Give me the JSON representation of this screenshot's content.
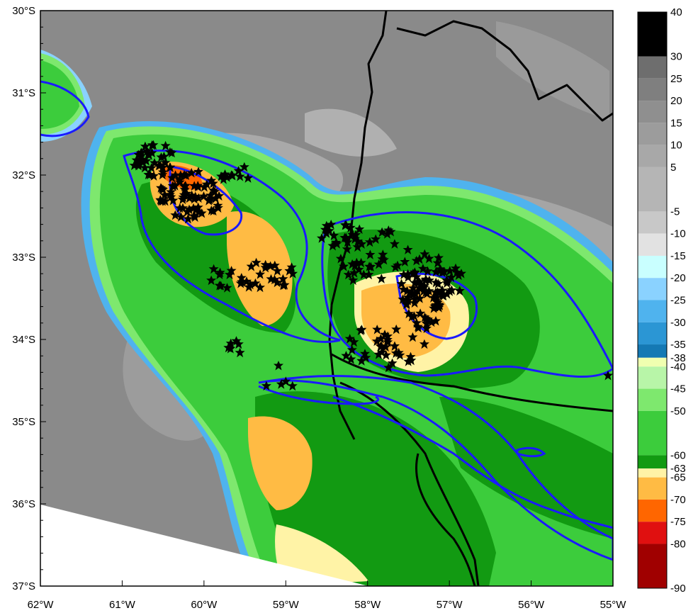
{
  "map": {
    "lat_labels": [
      "30°S",
      "31°S",
      "32°S",
      "33°S",
      "34°S",
      "35°S",
      "36°S",
      "37°S"
    ],
    "lon_labels": [
      "62°W",
      "61°W",
      "60°W",
      "59°W",
      "58°W",
      "57°W",
      "56°W",
      "55°W"
    ],
    "extent": {
      "lon_min": -62,
      "lon_max": -55,
      "lat_min": -37,
      "lat_max": -30
    },
    "layers": [
      "infrared brightness temperature shading",
      "blue contour lines",
      "black national borders",
      "black star lightning markers"
    ],
    "colors": {
      "background_gray": "#8a8a8a",
      "contour": "#1a1aff",
      "border": "#000000",
      "lightning_marker": "#000000",
      "no_data": "#ffffff"
    }
  },
  "colorbar": {
    "labels": [
      "40",
      "30",
      "25",
      "20",
      "15",
      "10",
      "5",
      "-5",
      "-10",
      "-15",
      "-20",
      "-25",
      "-30",
      "-35",
      "-38",
      "-40",
      "-45",
      "-50",
      "-60",
      "-63",
      "-65",
      "-70",
      "-75",
      "-80",
      "-90"
    ],
    "bands": [
      {
        "from": 30,
        "to": 40,
        "color": "#000000"
      },
      {
        "from": 25,
        "to": 30,
        "color": "#6e6e6e"
      },
      {
        "from": 20,
        "to": 25,
        "color": "#7f7f7f"
      },
      {
        "from": 15,
        "to": 20,
        "color": "#8f8f8f"
      },
      {
        "from": 10,
        "to": 15,
        "color": "#9c9c9c"
      },
      {
        "from": 5,
        "to": 10,
        "color": "#a8a8a8"
      },
      {
        "from": -5,
        "to": 5,
        "color": "#b5b5b5"
      },
      {
        "from": -10,
        "to": -5,
        "color": "#c8c8c8"
      },
      {
        "from": -15,
        "to": -10,
        "color": "#e2e2e2"
      },
      {
        "from": -20,
        "to": -15,
        "color": "#c9ffff"
      },
      {
        "from": -25,
        "to": -20,
        "color": "#8ad2ff"
      },
      {
        "from": -30,
        "to": -25,
        "color": "#4fb3ee"
      },
      {
        "from": -35,
        "to": -30,
        "color": "#2b96d4"
      },
      {
        "from": -38,
        "to": -35,
        "color": "#1479b4"
      },
      {
        "from": -40,
        "to": -38,
        "color": "#f0ffb0"
      },
      {
        "from": -45,
        "to": -40,
        "color": "#b8f5a8"
      },
      {
        "from": -50,
        "to": -45,
        "color": "#7ee86e"
      },
      {
        "from": -60,
        "to": -50,
        "color": "#3ccc3c"
      },
      {
        "from": -63,
        "to": -60,
        "color": "#129a12"
      },
      {
        "from": -65,
        "to": -63,
        "color": "#fff3a6"
      },
      {
        "from": -70,
        "to": -65,
        "color": "#ffbb44"
      },
      {
        "from": -75,
        "to": -70,
        "color": "#ff6600"
      },
      {
        "from": -80,
        "to": -75,
        "color": "#e01010"
      },
      {
        "from": -90,
        "to": -80,
        "color": "#a00000"
      }
    ]
  }
}
